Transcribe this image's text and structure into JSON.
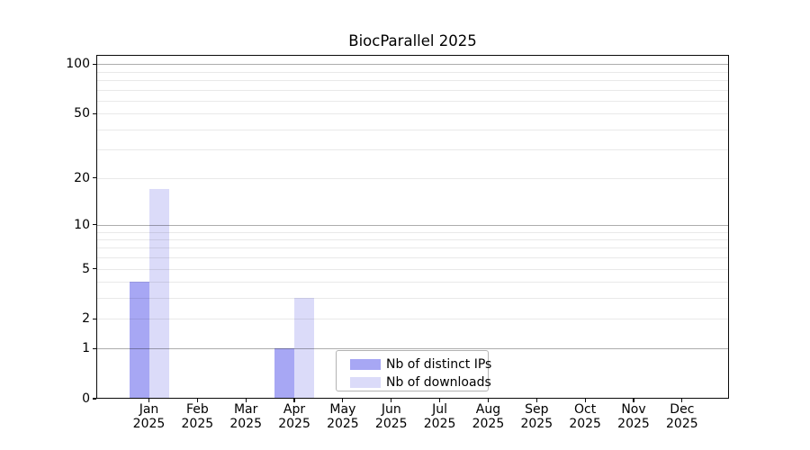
{
  "figure": {
    "title": "BiocParallel 2025"
  },
  "chart_data": {
    "type": "bar",
    "title": "BiocParallel 2025",
    "categories": [
      "Jan 2025",
      "Feb 2025",
      "Mar 2025",
      "Apr 2025",
      "May 2025",
      "Jun 2025",
      "Jul 2025",
      "Aug 2025",
      "Sep 2025",
      "Oct 2025",
      "Nov 2025",
      "Dec 2025"
    ],
    "series": [
      {
        "name": "Nb of distinct IPs",
        "color": "#a7a7f4",
        "values": [
          4,
          0,
          0,
          1,
          0,
          0,
          0,
          0,
          0,
          0,
          0,
          0
        ]
      },
      {
        "name": "Nb of downloads",
        "color": "#dbdbf9",
        "values": [
          17,
          0,
          0,
          3,
          0,
          0,
          0,
          0,
          0,
          0,
          0,
          0
        ]
      }
    ],
    "xlabel": "",
    "ylabel": "",
    "y_scale": "log1p",
    "ylim": [
      0,
      113
    ],
    "y_ticks": [
      0,
      1,
      2,
      5,
      10,
      20,
      50,
      100
    ],
    "grid": true,
    "y_minor_gridlines": [
      2,
      3,
      4,
      5,
      6,
      7,
      8,
      9,
      20,
      30,
      40,
      50,
      60,
      70,
      80,
      90
    ],
    "y_major_gridlines": [
      1,
      10,
      100
    ],
    "legend_position": "lower center (inside axes)"
  },
  "colors": {
    "background": "#ffffff",
    "spine": "#0a0a0a",
    "grid_minor": "#e9e9e9",
    "grid_major": "#b5b5b5",
    "text": "#000000",
    "legend_border": "#b3b3b3",
    "series_distinct_ips": "#a7a7f4",
    "series_downloads": "#dbdbf9"
  }
}
